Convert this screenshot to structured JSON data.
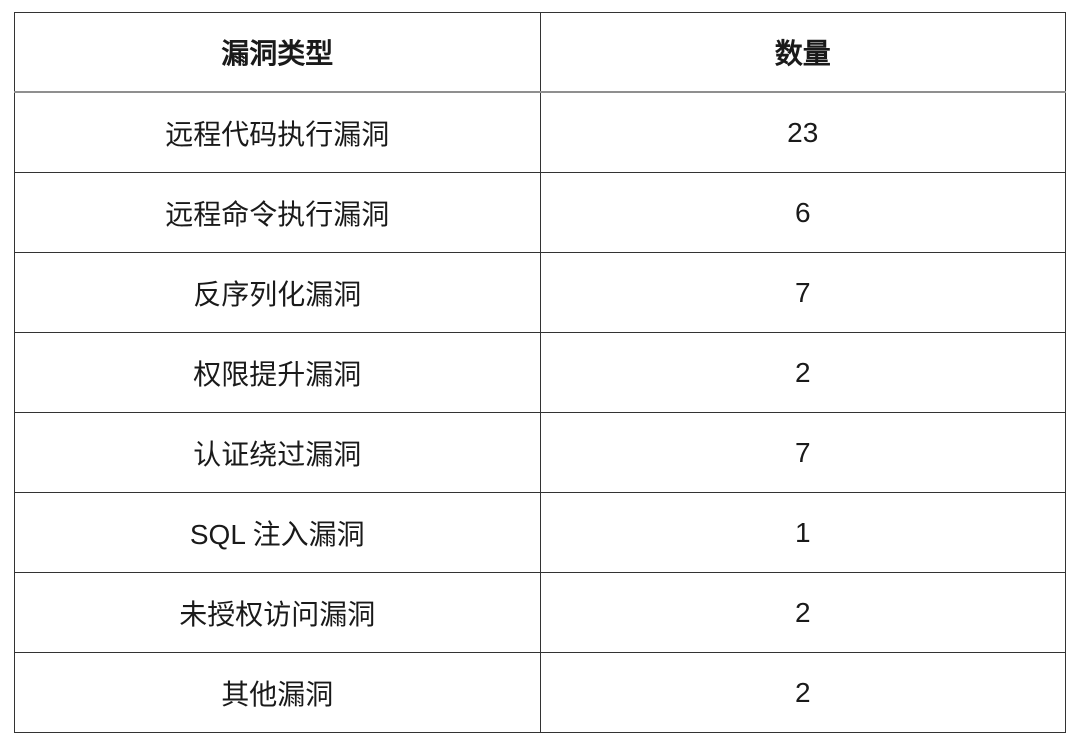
{
  "chart_data": {
    "type": "table",
    "columns": [
      "漏洞类型",
      "数量"
    ],
    "rows": [
      [
        "远程代码执行漏洞",
        "23"
      ],
      [
        "远程命令执行漏洞",
        "6"
      ],
      [
        "反序列化漏洞",
        "7"
      ],
      [
        "权限提升漏洞",
        "2"
      ],
      [
        "认证绕过漏洞",
        "7"
      ],
      [
        "SQL 注入漏洞",
        "1"
      ],
      [
        "未授权访问漏洞",
        "2"
      ],
      [
        "其他漏洞",
        "2"
      ]
    ],
    "categories": [
      "远程代码执行漏洞",
      "远程命令执行漏洞",
      "反序列化漏洞",
      "权限提升漏洞",
      "认证绕过漏洞",
      "SQL 注入漏洞",
      "未授权访问漏洞",
      "其他漏洞"
    ],
    "values": [
      23,
      6,
      7,
      2,
      7,
      1,
      2,
      2
    ],
    "layout": {
      "grid": "on",
      "text_align": "center",
      "header_bold": true
    }
  },
  "colors": {
    "background": "#ffffff",
    "grid_border": "#333333",
    "header_separator": "#8f8f8f",
    "text": "#1a1a1a"
  }
}
